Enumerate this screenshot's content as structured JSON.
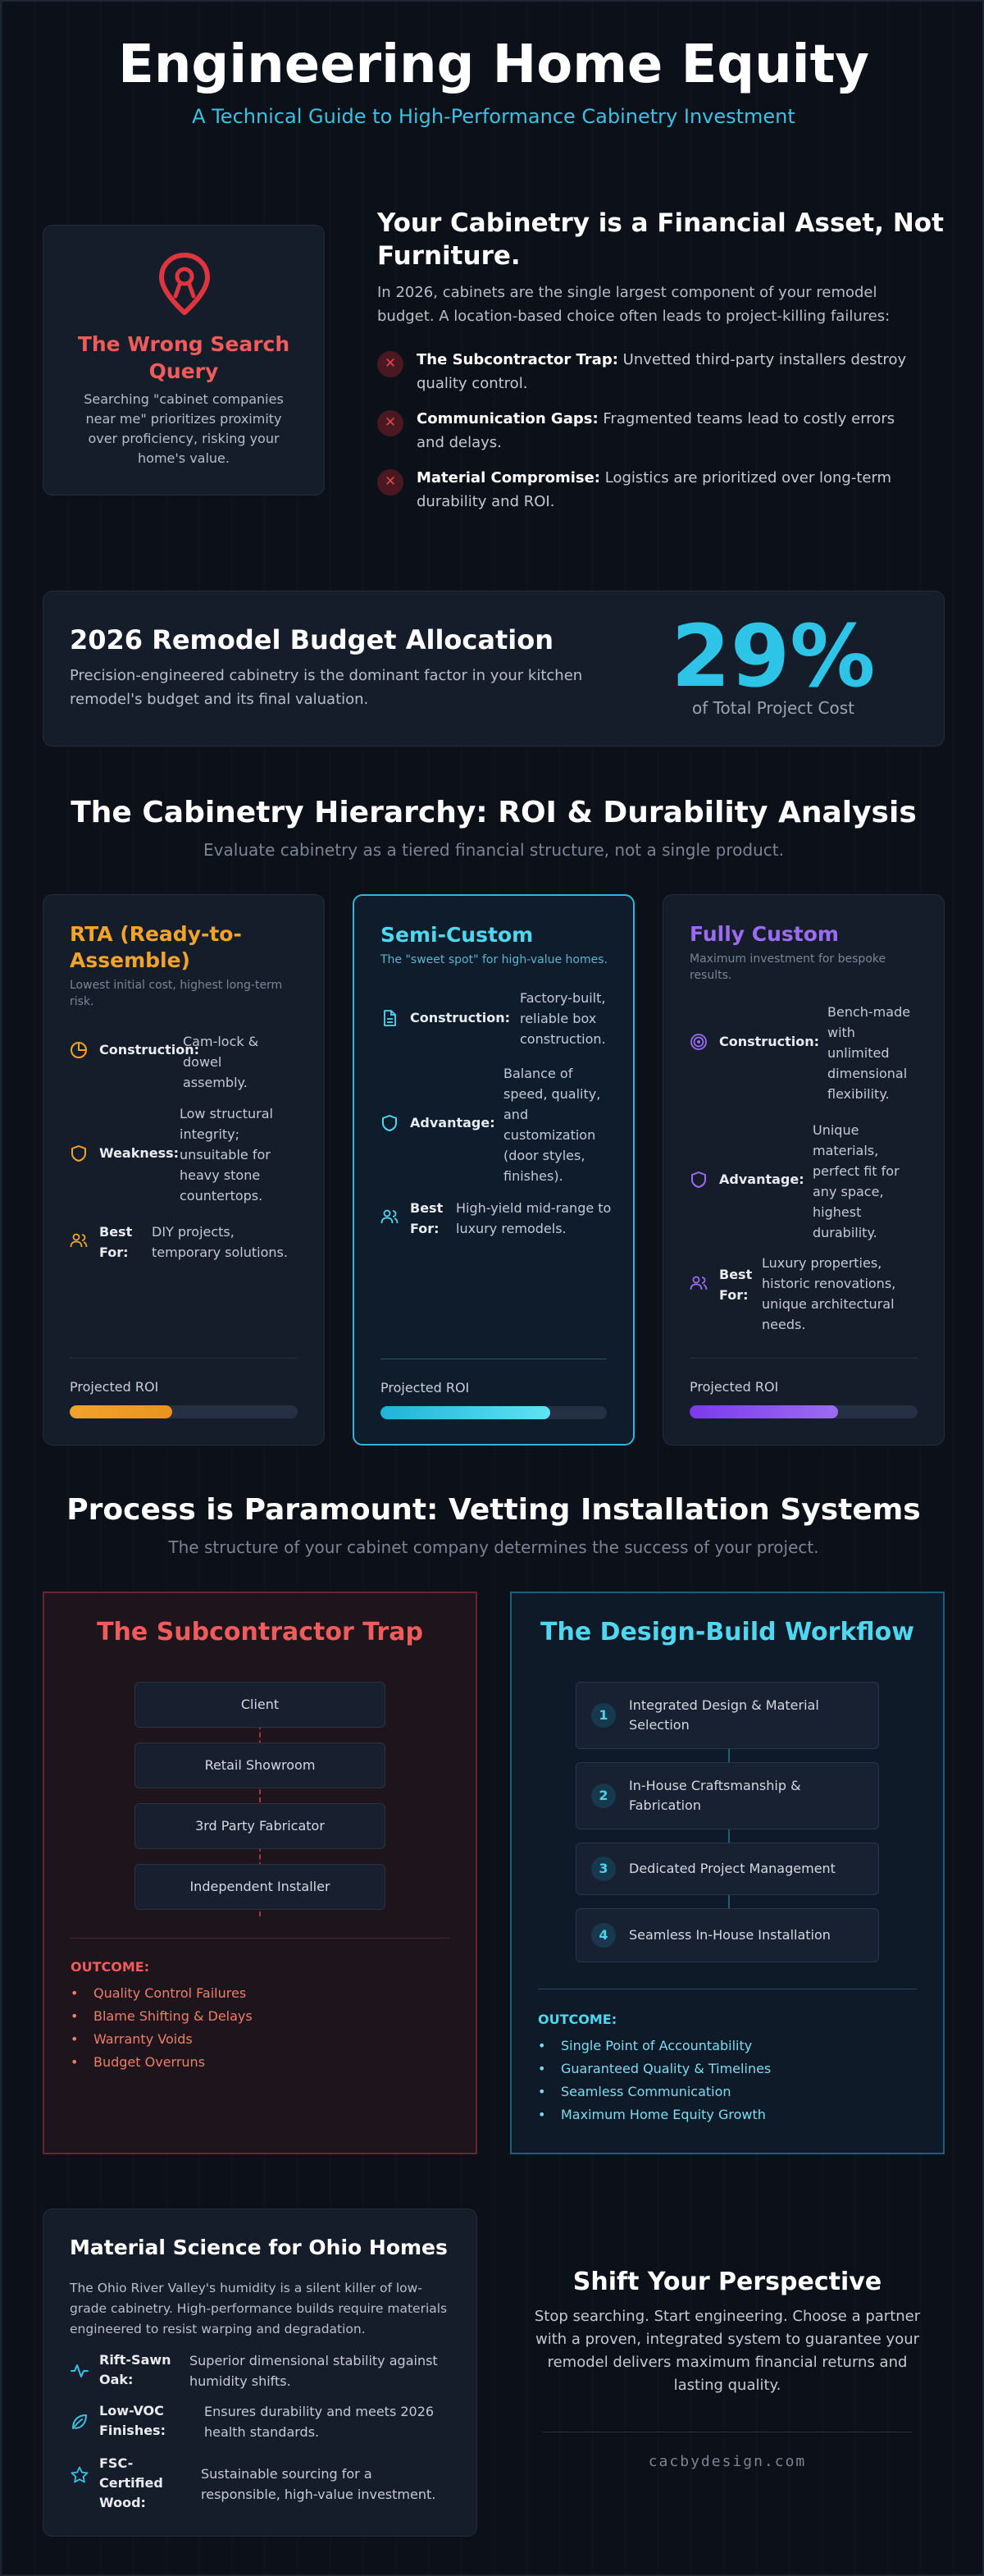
{
  "header": {
    "title": "Engineering Home Equity",
    "subtitle": "A Technical Guide to High-Performance Cabinetry Investment"
  },
  "wrong_search": {
    "icon": "map-pin-icon",
    "title": "The Wrong Search Query",
    "text": "Searching \"cabinet companies near me\" prioritizes proximity over proficiency, risking your home's value."
  },
  "asset": {
    "title": "Your Cabinetry is a Financial Asset, Not Furniture.",
    "text": "In 2026, cabinets are the single largest component of your remodel budget. A location-based choice often leads to project-killing failures:",
    "failures": [
      {
        "label": "The Subcontractor Trap:",
        "text": "Unvetted third-party installers destroy quality control."
      },
      {
        "label": "Communication Gaps:",
        "text": "Fragmented teams lead to costly errors and delays."
      },
      {
        "label": "Material Compromise:",
        "text": "Logistics are prioritized over long-term durability and ROI."
      }
    ]
  },
  "budget": {
    "title": "2026 Remodel Budget Allocation",
    "text": "Precision-engineered cabinetry is the dominant factor in your kitchen remodel's budget and its final valuation.",
    "value": "29%",
    "caption": "of Total Project Cost"
  },
  "hierarchy": {
    "title": "The Cabinetry Hierarchy: ROI & Durability Analysis",
    "subtitle": "Evaluate cabinetry as a tiered financial structure, not a single product.",
    "roi_label": "Projected ROI",
    "tiers": [
      {
        "title": "RTA (Ready-to-Assemble)",
        "subtitle": "Lowest initial cost, highest long-term risk.",
        "color": "#f2a32c",
        "roi": 0.45,
        "rows": [
          {
            "icon": "pie-chart-icon",
            "label": "Construction:",
            "value": "Cam-lock & dowel assembly."
          },
          {
            "icon": "shield-icon",
            "label": "Weakness:",
            "value": "Low structural integrity; unsuitable for heavy stone countertops."
          },
          {
            "icon": "users-icon",
            "label": "Best For:",
            "value": "DIY projects, temporary solutions."
          }
        ]
      },
      {
        "title": "Semi-Custom",
        "subtitle": "The \"sweet spot\" for high-value homes.",
        "color": "#4fd7f0",
        "roi": 0.75,
        "rows": [
          {
            "icon": "document-icon",
            "label": "Construction:",
            "value": "Factory-built, reliable box construction."
          },
          {
            "icon": "shield-icon",
            "label": "Advantage:",
            "value": "Balance of speed, quality, and customization (door styles, finishes)."
          },
          {
            "icon": "users-icon",
            "label": "Best For:",
            "value": "High-yield mid-range to luxury remodels."
          }
        ]
      },
      {
        "title": "Fully Custom",
        "subtitle": "Maximum investment for bespoke results.",
        "color": "#9b6cf2",
        "roi": 0.65,
        "rows": [
          {
            "icon": "target-icon",
            "label": "Construction:",
            "value": "Bench-made with unlimited dimensional flexibility."
          },
          {
            "icon": "shield-icon",
            "label": "Advantage:",
            "value": "Unique materials, perfect fit for any space, highest durability."
          },
          {
            "icon": "users-icon",
            "label": "Best For:",
            "value": "Luxury properties, historic renovations, unique architectural needs."
          }
        ]
      }
    ]
  },
  "process": {
    "title": "Process is Paramount: Vetting Installation Systems",
    "subtitle": "The structure of your cabinet company determines the success of your project.",
    "trap": {
      "title": "The Subcontractor Trap",
      "chain": [
        "Client",
        "Retail Showroom",
        "3rd Party Fabricator",
        "Independent Installer"
      ],
      "outcome_title": "OUTCOME:",
      "outcomes": [
        "Quality Control Failures",
        "Blame Shifting & Delays",
        "Warranty Voids",
        "Budget Overruns"
      ]
    },
    "design_build": {
      "title": "The Design-Build Workflow",
      "steps": [
        {
          "num": "1",
          "text": "Integrated Design & Material Selection"
        },
        {
          "num": "2",
          "text": "In-House Craftsmanship & Fabrication"
        },
        {
          "num": "3",
          "text": "Dedicated Project Management"
        },
        {
          "num": "4",
          "text": "Seamless In-House Installation"
        }
      ],
      "outcome_title": "OUTCOME:",
      "outcomes": [
        "Single Point of Accountability",
        "Guaranteed Quality & Timelines",
        "Seamless Communication",
        "Maximum Home Equity Growth"
      ]
    }
  },
  "material": {
    "title": "Material Science for Ohio Homes",
    "text": "The Ohio River Valley's humidity is a silent killer of low-grade cabinetry. High-performance builds require materials engineered to resist warping and degradation.",
    "rows": [
      {
        "icon": "wave-pulse-icon",
        "label": "Rift-Sawn Oak:",
        "value": "Superior dimensional stability against humidity shifts."
      },
      {
        "icon": "leaf-icon",
        "label": "Low-VOC Finishes:",
        "value": "Ensures durability and meets 2026 health standards."
      },
      {
        "icon": "star-icon",
        "label": "FSC-Certified Wood:",
        "value": "Sustainable sourcing for a responsible, high-value investment."
      }
    ]
  },
  "shift": {
    "title": "Shift Your Perspective",
    "text": "Stop searching. Start engineering. Choose a partner with a proven, integrated system to guarantee your remodel delivers maximum financial returns and lasting quality.",
    "site": "cacbydesign.com"
  }
}
